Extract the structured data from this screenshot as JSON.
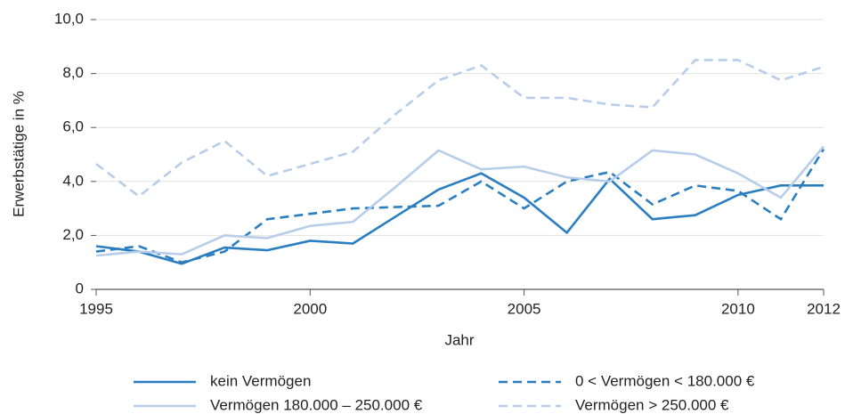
{
  "chart_data": {
    "type": "line",
    "x_label": "Jahr",
    "y_label": "Erwerbstätige in %",
    "x": [
      1995,
      1996,
      1997,
      1998,
      1999,
      2000,
      2001,
      2002,
      2003,
      2004,
      2005,
      2006,
      2007,
      2008,
      2009,
      2010,
      2011,
      2012
    ],
    "xlim": [
      1995,
      2012
    ],
    "xticks": [
      1995,
      2000,
      2005,
      2010,
      2012
    ],
    "ylim": [
      0,
      10
    ],
    "yticks": [
      0,
      {
        "value": 2,
        "label": "2,0"
      },
      {
        "value": 4,
        "label": "4,0"
      },
      {
        "value": 6,
        "label": "6,0"
      },
      {
        "value": 8,
        "label": "8,0"
      },
      {
        "value": 10,
        "label": "10,0"
      }
    ],
    "grid": true,
    "series": [
      {
        "name": "kein Vermögen",
        "color": "#2b7ec0",
        "style": "solid",
        "values": [
          1.6,
          1.4,
          0.95,
          1.55,
          1.45,
          1.8,
          1.7,
          2.7,
          3.7,
          4.3,
          3.4,
          2.1,
          4.1,
          2.6,
          2.75,
          3.5,
          3.85,
          3.85
        ]
      },
      {
        "name": "0 < Vermögen < 180.000 €",
        "color": "#2b7ec0",
        "style": "dashed",
        "values": [
          1.4,
          1.6,
          1.0,
          1.4,
          2.6,
          2.8,
          3.0,
          3.05,
          3.1,
          4.0,
          3.0,
          4.0,
          4.35,
          3.15,
          3.85,
          3.65,
          2.6,
          5.2
        ]
      },
      {
        "name": "Vermögen 180.000 – 250.000 €",
        "color": "#b7cde9",
        "style": "solid",
        "values": [
          1.25,
          1.4,
          1.3,
          2.0,
          1.9,
          2.35,
          2.5,
          3.8,
          5.15,
          4.45,
          4.55,
          4.15,
          4.0,
          5.15,
          5.0,
          4.3,
          3.4,
          5.3
        ]
      },
      {
        "name": "Vermögen > 250.000 €",
        "color": "#b7cde9",
        "style": "dashed",
        "values": [
          4.65,
          3.45,
          4.7,
          5.5,
          4.2,
          4.65,
          5.1,
          6.5,
          7.75,
          8.3,
          7.1,
          7.1,
          6.85,
          6.75,
          8.5,
          8.5,
          7.75,
          8.25
        ]
      }
    ]
  }
}
